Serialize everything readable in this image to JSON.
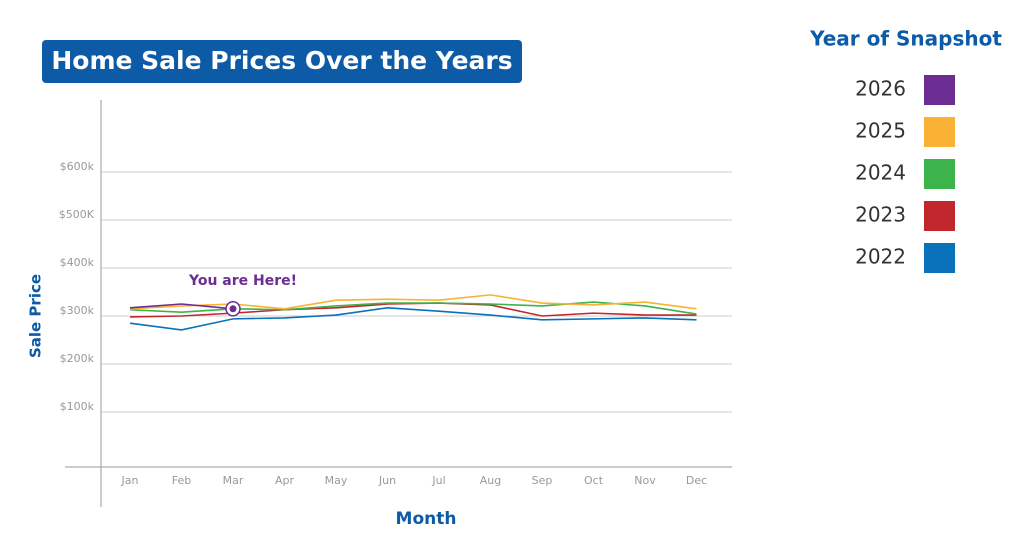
{
  "chart_data": {
    "type": "line",
    "title": "Home Sale Prices Over the Years",
    "y_label": "Sale Price",
    "x_label": "Month",
    "legend_title": "Year of Snapshot",
    "annotation": "You are Here!",
    "categories": [
      "Jan",
      "Feb",
      "Mar",
      "Apr",
      "May",
      "Jun",
      "Jul",
      "Aug",
      "Sep",
      "Oct",
      "Nov",
      "Dec"
    ],
    "series": [
      {
        "name": "2026",
        "color": "#6b2d91",
        "values": [
          317,
          325,
          315,
          null,
          null,
          null,
          null,
          null,
          null,
          null,
          null,
          null
        ]
      },
      {
        "name": "2025",
        "color": "#f9b233",
        "values": [
          315,
          321,
          325,
          315,
          333,
          335,
          333,
          344,
          327,
          323,
          329,
          315
        ]
      },
      {
        "name": "2024",
        "color": "#3cb44b",
        "values": [
          313,
          308,
          315,
          313,
          321,
          327,
          327,
          325,
          321,
          329,
          321,
          304
        ]
      },
      {
        "name": "2023",
        "color": "#c1272d",
        "values": [
          298,
          300,
          306,
          313,
          317,
          325,
          327,
          323,
          300,
          306,
          302,
          302
        ]
      },
      {
        "name": "2022",
        "color": "#0a72ba",
        "values": [
          285,
          271,
          294,
          296,
          302,
          317,
          310,
          302,
          292,
          294,
          296,
          292
        ]
      }
    ],
    "ylim": [
      0,
      750
    ],
    "yticks": [
      {
        "value": 100,
        "label": "$100k"
      },
      {
        "value": 200,
        "label": "$200k"
      },
      {
        "value": 300,
        "label": "$300k"
      },
      {
        "value": 400,
        "label": "$400k"
      },
      {
        "value": 500,
        "label": "$500K"
      },
      {
        "value": 600,
        "label": "$600k"
      }
    ],
    "grid": true
  }
}
